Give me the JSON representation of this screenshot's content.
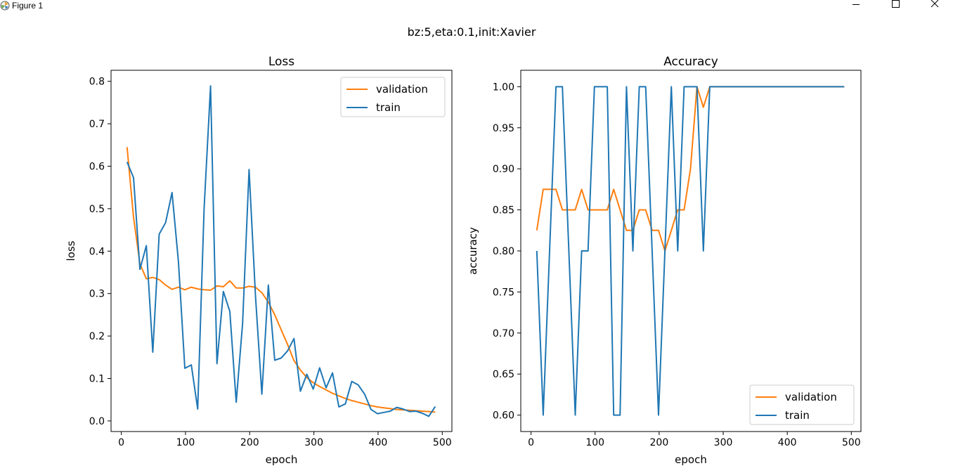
{
  "window": {
    "title": "Figure 1",
    "icon": "matplotlib-icon",
    "controls": [
      "minimize-icon",
      "maximize-icon",
      "close-icon"
    ]
  },
  "figure": {
    "suptitle": "bz:5,eta:0.1,init:Xavier"
  },
  "colors": {
    "validation": "#ff7f0e",
    "train": "#1f77b4"
  },
  "chart_data": [
    {
      "type": "line",
      "title": "Loss",
      "xlabel": "epoch",
      "ylabel": "loss",
      "xlim": [
        -16,
        515
      ],
      "ylim": [
        -0.025,
        0.826
      ],
      "xticks": [
        0,
        100,
        200,
        300,
        400,
        500
      ],
      "xtick_labels": [
        "0",
        "100",
        "200",
        "300",
        "400",
        "500"
      ],
      "yticks": [
        0.0,
        0.1,
        0.2,
        0.3,
        0.4,
        0.5,
        0.6,
        0.7,
        0.8
      ],
      "ytick_labels": [
        "0.0",
        "0.1",
        "0.2",
        "0.3",
        "0.4",
        "0.5",
        "0.6",
        "0.7",
        "0.8"
      ],
      "grid": false,
      "legend": "upper-right",
      "series": [
        {
          "name": "validation",
          "color": "#ff7f0e",
          "x": [
            9,
            19,
            29,
            39,
            49,
            59,
            69,
            79,
            89,
            99,
            109,
            119,
            129,
            139,
            149,
            159,
            169,
            179,
            189,
            199,
            209,
            219,
            229,
            239,
            249,
            259,
            269,
            279,
            289,
            299,
            309,
            319,
            329,
            339,
            349,
            359,
            369,
            379,
            389,
            399,
            409,
            419,
            429,
            439,
            449,
            459,
            469,
            479,
            489
          ],
          "y": [
            0.645,
            0.48,
            0.37,
            0.335,
            0.338,
            0.333,
            0.32,
            0.31,
            0.315,
            0.309,
            0.315,
            0.311,
            0.309,
            0.308,
            0.318,
            0.316,
            0.33,
            0.313,
            0.313,
            0.317,
            0.315,
            0.302,
            0.28,
            0.25,
            0.215,
            0.18,
            0.142,
            0.12,
            0.102,
            0.09,
            0.081,
            0.073,
            0.065,
            0.059,
            0.053,
            0.048,
            0.044,
            0.04,
            0.036,
            0.033,
            0.031,
            0.029,
            0.027,
            0.026,
            0.025,
            0.024,
            0.023,
            0.022,
            0.021
          ]
        },
        {
          "name": "train",
          "color": "#1f77b4",
          "x": [
            9,
            19,
            29,
            39,
            49,
            59,
            69,
            79,
            89,
            99,
            109,
            119,
            129,
            139,
            149,
            159,
            169,
            179,
            189,
            199,
            209,
            219,
            229,
            239,
            249,
            259,
            269,
            279,
            289,
            299,
            309,
            319,
            329,
            339,
            349,
            359,
            369,
            379,
            389,
            399,
            409,
            419,
            429,
            439,
            449,
            459,
            469,
            479,
            489
          ],
          "y": [
            0.61,
            0.573,
            0.357,
            0.413,
            0.162,
            0.44,
            0.467,
            0.538,
            0.375,
            0.124,
            0.132,
            0.028,
            0.5,
            0.789,
            0.135,
            0.305,
            0.258,
            0.044,
            0.23,
            0.592,
            0.295,
            0.063,
            0.32,
            0.143,
            0.148,
            0.165,
            0.194,
            0.07,
            0.11,
            0.075,
            0.125,
            0.078,
            0.113,
            0.033,
            0.04,
            0.093,
            0.085,
            0.063,
            0.027,
            0.017,
            0.02,
            0.023,
            0.032,
            0.028,
            0.022,
            0.023,
            0.018,
            0.011,
            0.034
          ]
        }
      ]
    },
    {
      "type": "line",
      "title": "Accuracy",
      "xlabel": "epoch",
      "ylabel": "accuracy",
      "xlim": [
        -16,
        515
      ],
      "ylim": [
        0.58,
        1.02
      ],
      "xticks": [
        0,
        100,
        200,
        300,
        400,
        500
      ],
      "xtick_labels": [
        "0",
        "100",
        "200",
        "300",
        "400",
        "500"
      ],
      "yticks": [
        0.6,
        0.65,
        0.7,
        0.75,
        0.8,
        0.85,
        0.9,
        0.95,
        1.0
      ],
      "ytick_labels": [
        "0.60",
        "0.65",
        "0.70",
        "0.75",
        "0.80",
        "0.85",
        "0.90",
        "0.95",
        "1.00"
      ],
      "grid": false,
      "legend": "lower-right",
      "series": [
        {
          "name": "validation",
          "color": "#ff7f0e",
          "x": [
            9,
            19,
            29,
            39,
            49,
            59,
            69,
            79,
            89,
            99,
            109,
            119,
            129,
            139,
            149,
            159,
            169,
            179,
            189,
            199,
            209,
            219,
            229,
            239,
            249,
            259,
            269,
            279,
            289,
            299,
            309,
            319,
            329,
            339,
            349,
            359,
            369,
            379,
            389,
            399,
            409,
            419,
            429,
            439,
            449,
            459,
            469,
            479,
            489
          ],
          "y": [
            0.825,
            0.875,
            0.875,
            0.875,
            0.85,
            0.85,
            0.85,
            0.875,
            0.85,
            0.85,
            0.85,
            0.85,
            0.875,
            0.85,
            0.825,
            0.825,
            0.85,
            0.85,
            0.825,
            0.825,
            0.8,
            0.825,
            0.85,
            0.85,
            0.9,
            1.0,
            0.975,
            1.0,
            1.0,
            1.0,
            1.0,
            1.0,
            1.0,
            1.0,
            1.0,
            1.0,
            1.0,
            1.0,
            1.0,
            1.0,
            1.0,
            1.0,
            1.0,
            1.0,
            1.0,
            1.0,
            1.0,
            1.0,
            1.0
          ]
        },
        {
          "name": "train",
          "color": "#1f77b4",
          "x": [
            9,
            19,
            29,
            39,
            49,
            59,
            69,
            79,
            89,
            99,
            109,
            119,
            129,
            139,
            149,
            159,
            169,
            179,
            189,
            199,
            209,
            219,
            229,
            239,
            249,
            259,
            269,
            279,
            289,
            299,
            309,
            319,
            329,
            339,
            349,
            359,
            369,
            379,
            389,
            399,
            409,
            419,
            429,
            439,
            449,
            459,
            469,
            479,
            489
          ],
          "y": [
            0.8,
            0.6,
            0.8,
            1.0,
            1.0,
            0.8,
            0.6,
            0.8,
            0.8,
            1.0,
            1.0,
            1.0,
            0.6,
            0.6,
            1.0,
            0.8,
            1.0,
            1.0,
            0.8,
            0.6,
            0.8,
            1.0,
            0.8,
            1.0,
            1.0,
            1.0,
            0.8,
            1.0,
            1.0,
            1.0,
            1.0,
            1.0,
            1.0,
            1.0,
            1.0,
            1.0,
            1.0,
            1.0,
            1.0,
            1.0,
            1.0,
            1.0,
            1.0,
            1.0,
            1.0,
            1.0,
            1.0,
            1.0,
            1.0
          ]
        }
      ]
    }
  ]
}
